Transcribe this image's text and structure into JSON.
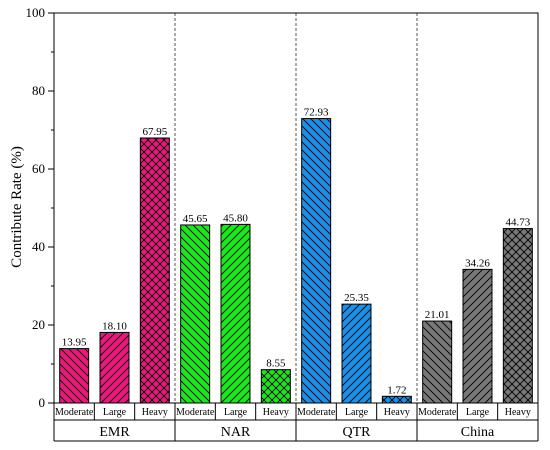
{
  "chart_data": {
    "type": "bar",
    "ylabel": "Contribute Rate (%)",
    "ylim": [
      0,
      100
    ],
    "yticks": [
      0,
      20,
      40,
      60,
      80,
      100
    ],
    "grid": false,
    "groups": [
      {
        "name": "EMR",
        "color": "#e8197a",
        "bars": [
          {
            "category": "Moderate",
            "value": 13.95,
            "label": "13.95",
            "pattern": "diag-back"
          },
          {
            "category": "Large",
            "value": 18.1,
            "label": "18.10",
            "pattern": "diag-fwd"
          },
          {
            "category": "Heavy",
            "value": 67.95,
            "label": "67.95",
            "pattern": "cross"
          }
        ]
      },
      {
        "name": "NAR",
        "color": "#1ee61e",
        "bars": [
          {
            "category": "Moderate",
            "value": 45.65,
            "label": "45.65",
            "pattern": "diag-back"
          },
          {
            "category": "Large",
            "value": 45.8,
            "label": "45.80",
            "pattern": "diag-fwd"
          },
          {
            "category": "Heavy",
            "value": 8.55,
            "label": "8.55",
            "pattern": "cross"
          }
        ]
      },
      {
        "name": "QTR",
        "color": "#1e8fe6",
        "bars": [
          {
            "category": "Moderate",
            "value": 72.93,
            "label": "72.93",
            "pattern": "diag-back"
          },
          {
            "category": "Large",
            "value": 25.35,
            "label": "25.35",
            "pattern": "diag-fwd"
          },
          {
            "category": "Heavy",
            "value": 1.72,
            "label": "1.72",
            "pattern": "cross"
          }
        ]
      },
      {
        "name": "China",
        "color": "#787878",
        "bars": [
          {
            "category": "Moderate",
            "value": 21.01,
            "label": "21.01",
            "pattern": "diag-back"
          },
          {
            "category": "Large",
            "value": 34.26,
            "label": "34.26",
            "pattern": "diag-fwd"
          },
          {
            "category": "Heavy",
            "value": 44.73,
            "label": "44.73",
            "pattern": "cross"
          }
        ]
      }
    ]
  }
}
